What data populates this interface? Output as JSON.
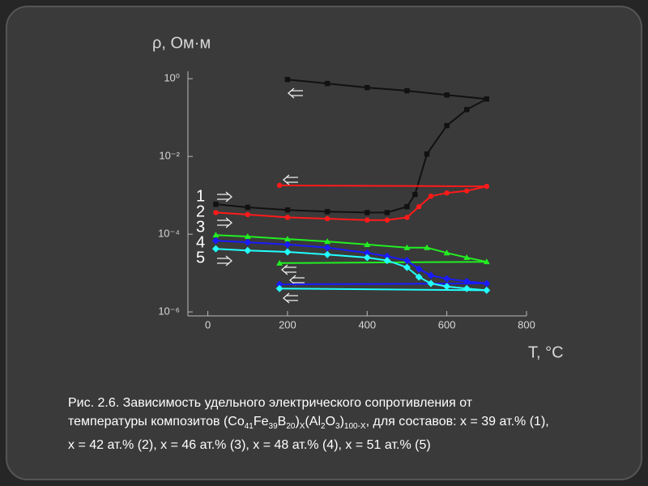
{
  "chart_data": {
    "type": "line",
    "y_label": "ρ, Ом·м",
    "x_label": "T, °C",
    "xlim": [
      -50,
      800
    ],
    "xticks": [
      0,
      200,
      400,
      600,
      800
    ],
    "ylim": [
      7.9e-07,
      1.55
    ],
    "log_y": true,
    "yticks": [
      {
        "value": 1,
        "label": "10⁰"
      },
      {
        "value": 0.01,
        "label": "10⁻²"
      },
      {
        "value": 0.0001,
        "label": "10⁻⁴"
      },
      {
        "value": 1e-06,
        "label": "10⁻⁶"
      }
    ],
    "series": [
      {
        "name": "1",
        "color": "#111111",
        "marker": "square",
        "x": [
          20,
          100,
          200,
          300,
          400,
          450,
          500,
          520,
          550,
          600,
          650,
          700,
          600,
          500,
          400,
          300,
          200
        ],
        "values": [
          0.00059,
          0.00049,
          0.00042,
          0.00038,
          0.00036,
          0.00036,
          0.00051,
          0.00105,
          0.0115,
          0.062,
          0.16,
          0.3,
          0.38,
          0.49,
          0.59,
          0.75,
          0.95
        ]
      },
      {
        "name": "2",
        "color": "#ff1a1a",
        "marker": "circle",
        "x": [
          20,
          100,
          200,
          300,
          400,
          450,
          500,
          530,
          560,
          600,
          650,
          700,
          180
        ],
        "values": [
          0.00036,
          0.00032,
          0.00027,
          0.00025,
          0.00023,
          0.00023,
          0.00027,
          0.00051,
          0.00095,
          0.00115,
          0.0013,
          0.0017,
          0.0018
        ]
      },
      {
        "name": "3",
        "color": "#22ee22",
        "marker": "triangle",
        "x": [
          20,
          100,
          200,
          300,
          400,
          500,
          550,
          600,
          650,
          700,
          180
        ],
        "values": [
          9.5e-05,
          8.7e-05,
          7.5e-05,
          6.5e-05,
          5.4e-05,
          4.5e-05,
          4.5e-05,
          3.3e-05,
          2.5e-05,
          1.95e-05,
          1.8e-05
        ]
      },
      {
        "name": "4",
        "color": "#1a1aff",
        "marker": "diamond",
        "x": [
          20,
          100,
          200,
          300,
          400,
          450,
          500,
          530,
          560,
          600,
          650,
          700,
          180
        ],
        "values": [
          6.8e-05,
          6.2e-05,
          5.4e-05,
          4.5e-05,
          3.3e-05,
          2.7e-05,
          2.1e-05,
          1.27e-05,
          8.7e-06,
          7.1e-06,
          6.1e-06,
          5.4e-06,
          5.1e-06
        ]
      },
      {
        "name": "5",
        "color": "#22ffff",
        "marker": "diamond",
        "x": [
          20,
          100,
          200,
          300,
          400,
          450,
          500,
          530,
          560,
          600,
          650,
          700,
          180
        ],
        "values": [
          4.2e-05,
          3.8e-05,
          3.5e-05,
          3e-05,
          2.5e-05,
          2.1e-05,
          1.4e-05,
          7.9e-06,
          5.4e-06,
          4.5e-06,
          4e-06,
          3.6e-06,
          4e-06
        ]
      }
    ]
  },
  "caption": [
    "Рис. 2.6. Зависимость удельного электрического сопротивления от температуры  композитов (Co",
    "41",
    "Fe",
    "39",
    "B",
    "20",
    ")",
    "X",
    "(Al",
    "2",
    "O",
    "3",
    ")",
    "100-X",
    ", для составов: x = 39 ат.% (1), x = 42 ат.% (2), x = 46 ат.% (3), x = 48 ат.% (4), x = 51 ат.% (5)"
  ]
}
